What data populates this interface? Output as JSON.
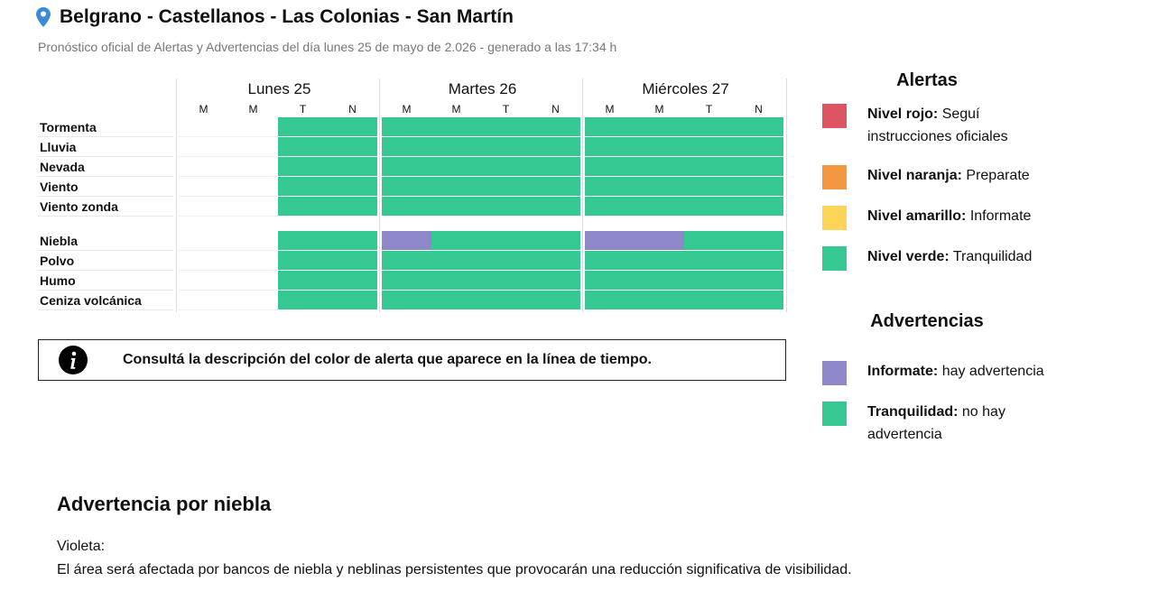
{
  "header": {
    "title": "Belgrano - Castellanos - Las Colonias - San Martín",
    "subtitle": "Pronóstico oficial de Alertas y Advertencias del día lunes 25 de mayo de 2.026 - generado a las 17:34 h"
  },
  "table": {
    "days": [
      {
        "label": "Lunes 25",
        "periods": [
          "M",
          "M",
          "T",
          "N"
        ]
      },
      {
        "label": "Martes 26",
        "periods": [
          "M",
          "M",
          "T",
          "N"
        ]
      },
      {
        "label": "Miércoles 27",
        "periods": [
          "M",
          "M",
          "T",
          "N"
        ]
      }
    ],
    "groups": [
      {
        "rows": [
          {
            "label": "Tormenta",
            "cells": [
              null,
              null,
              "#35c893",
              "#35c893",
              "#35c893",
              "#35c893",
              "#35c893",
              "#35c893",
              "#35c893",
              "#35c893",
              "#35c893",
              "#35c893"
            ]
          },
          {
            "label": "Lluvia",
            "cells": [
              null,
              null,
              "#35c893",
              "#35c893",
              "#35c893",
              "#35c893",
              "#35c893",
              "#35c893",
              "#35c893",
              "#35c893",
              "#35c893",
              "#35c893"
            ]
          },
          {
            "label": "Nevada",
            "cells": [
              null,
              null,
              "#35c893",
              "#35c893",
              "#35c893",
              "#35c893",
              "#35c893",
              "#35c893",
              "#35c893",
              "#35c893",
              "#35c893",
              "#35c893"
            ]
          },
          {
            "label": "Viento",
            "cells": [
              null,
              null,
              "#35c893",
              "#35c893",
              "#35c893",
              "#35c893",
              "#35c893",
              "#35c893",
              "#35c893",
              "#35c893",
              "#35c893",
              "#35c893"
            ]
          },
          {
            "label": "Viento zonda",
            "cells": [
              null,
              null,
              "#35c893",
              "#35c893",
              "#35c893",
              "#35c893",
              "#35c893",
              "#35c893",
              "#35c893",
              "#35c893",
              "#35c893",
              "#35c893"
            ]
          }
        ]
      },
      {
        "rows": [
          {
            "label": "Niebla",
            "cells": [
              null,
              null,
              "#35c893",
              "#35c893",
              "#8e87c8",
              "#35c893",
              "#35c893",
              "#35c893",
              "#8e87c8",
              "#8e87c8",
              "#35c893",
              "#35c893"
            ]
          },
          {
            "label": "Polvo",
            "cells": [
              null,
              null,
              "#35c893",
              "#35c893",
              "#35c893",
              "#35c893",
              "#35c893",
              "#35c893",
              "#35c893",
              "#35c893",
              "#35c893",
              "#35c893"
            ]
          },
          {
            "label": "Humo",
            "cells": [
              null,
              null,
              "#35c893",
              "#35c893",
              "#35c893",
              "#35c893",
              "#35c893",
              "#35c893",
              "#35c893",
              "#35c893",
              "#35c893",
              "#35c893"
            ]
          },
          {
            "label": "Ceniza volcánica",
            "cells": [
              null,
              null,
              "#35c893",
              "#35c893",
              "#35c893",
              "#35c893",
              "#35c893",
              "#35c893",
              "#35c893",
              "#35c893",
              "#35c893",
              "#35c893"
            ]
          }
        ]
      }
    ]
  },
  "info": {
    "text": "Consultá la descripción del color de alerta que aparece en la línea de tiempo."
  },
  "legend": [
    {
      "title": "Alertas",
      "items": [
        {
          "label": "Nivel rojo:",
          "text": "Seguí instrucciones oficiales",
          "color": "#dd5462"
        },
        {
          "label": "Nivel naranja:",
          "text": "Preparate",
          "color": "#f39840"
        },
        {
          "label": "Nivel amarillo:",
          "text": "Informate",
          "color": "#fcd557"
        },
        {
          "label": "Nivel verde:",
          "text": "Tranquilidad",
          "color": "#35c893"
        }
      ]
    },
    {
      "title": "Advertencias",
      "items": [
        {
          "label": "Informate:",
          "text": "hay advertencia",
          "color": "#8e87c8"
        },
        {
          "label": "Tranquilidad:",
          "text": "no hay advertencia",
          "color": "#35c893"
        }
      ]
    }
  ],
  "section": {
    "title": "Advertencia por niebla",
    "lines": [
      "Violeta:",
      "El área será afectada por bancos de niebla y neblinas persistentes que provocarán una reducción significativa de visibilidad."
    ]
  }
}
